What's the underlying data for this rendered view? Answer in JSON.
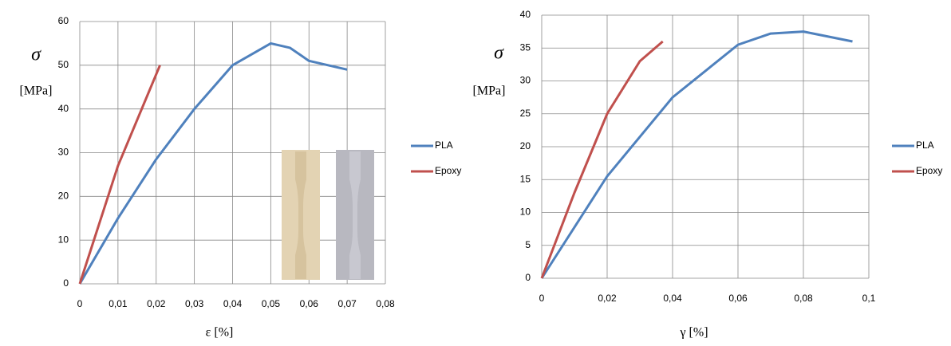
{
  "chart_data": [
    {
      "type": "line",
      "ylabel": "σ",
      "yunit": "[MPa]",
      "xlabel": "ε [%]",
      "xlim": [
        0,
        0.08
      ],
      "xticks": [
        0,
        {
          "value": 0.01,
          "label": "0,01"
        },
        {
          "value": 0.02,
          "label": "0,02"
        },
        {
          "value": 0.03,
          "label": "0,03"
        },
        {
          "value": 0.04,
          "label": "0,04"
        },
        {
          "value": 0.05,
          "label": "0,05"
        },
        {
          "value": 0.06,
          "label": "0,06"
        },
        {
          "value": 0.07,
          "label": "0,07"
        },
        {
          "value": 0.08,
          "label": "0,08"
        }
      ],
      "ylim": [
        0,
        60
      ],
      "yticks": [
        0,
        10,
        20,
        30,
        40,
        50,
        60
      ],
      "grid": true,
      "legend": "right",
      "series": [
        {
          "name": "PLA",
          "color": "#4f81bd",
          "x": [
            0,
            0.01,
            0.02,
            0.03,
            0.04,
            0.05,
            0.055,
            0.06,
            0.07
          ],
          "values": [
            0,
            15,
            28.5,
            40,
            50,
            55,
            54,
            51,
            49
          ]
        },
        {
          "name": "Epoxy",
          "color": "#c0504d",
          "x": [
            0,
            0.01,
            0.021
          ],
          "values": [
            0,
            27,
            50
          ]
        }
      ]
    },
    {
      "type": "line",
      "ylabel": "σ",
      "yunit": "[MPa]",
      "xlabel": "γ [%]",
      "xlim": [
        0,
        0.1
      ],
      "xticks": [
        0,
        {
          "value": 0.02,
          "label": "0,02"
        },
        {
          "value": 0.04,
          "label": "0,04"
        },
        {
          "value": 0.06,
          "label": "0,06"
        },
        {
          "value": 0.08,
          "label": "0,08"
        },
        {
          "value": 0.1,
          "label": "0,1"
        }
      ],
      "ylim": [
        0,
        40
      ],
      "yticks": [
        0,
        5,
        10,
        15,
        20,
        25,
        30,
        35,
        40
      ],
      "grid": true,
      "legend": "right",
      "series": [
        {
          "name": "PLA",
          "color": "#4f81bd",
          "x": [
            0,
            0.02,
            0.04,
            0.06,
            0.07,
            0.08,
            0.095
          ],
          "values": [
            0,
            15.5,
            27.5,
            35.5,
            37.2,
            37.5,
            36
          ]
        },
        {
          "name": "Epoxy",
          "color": "#c0504d",
          "x": [
            0,
            0.01,
            0.02,
            0.03,
            0.037
          ],
          "values": [
            0,
            13,
            25,
            33,
            36
          ]
        }
      ]
    }
  ]
}
